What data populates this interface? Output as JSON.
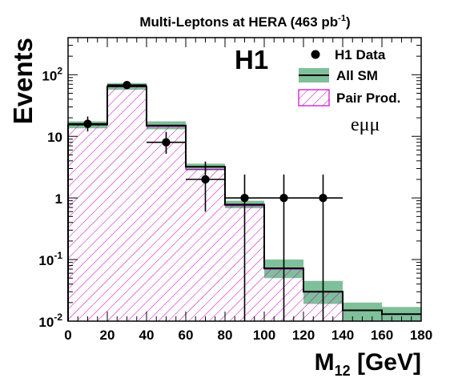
{
  "chart_data": {
    "type": "bar",
    "title": "Multi-Leptons at HERA (463 pb",
    "title_sup": "-1",
    "title_close": ")",
    "experiment": "H1",
    "channel": "eμμ",
    "xlabel": "M",
    "xlabel_sub": "12",
    "xlabel_unit": " [GeV]",
    "ylabel": "Events",
    "xlim": [
      0,
      180
    ],
    "ylim": [
      0.01,
      400
    ],
    "y_scale": "log",
    "grid": false,
    "legend_position": "top-right",
    "x_ticks": [
      0,
      20,
      40,
      60,
      80,
      100,
      120,
      140,
      160,
      180
    ],
    "x_tick_labels": [
      "0",
      "20",
      "40",
      "60",
      "80",
      "100",
      "120",
      "140",
      "160",
      "180"
    ],
    "y_ticks": [
      {
        "value": 0.01,
        "base": "10",
        "exp": "-2"
      },
      {
        "value": 0.1,
        "base": "10",
        "exp": "-1"
      },
      {
        "value": 1,
        "base": "1",
        "exp": ""
      },
      {
        "value": 10,
        "base": "10",
        "exp": ""
      },
      {
        "value": 100,
        "base": "10",
        "exp": "2"
      }
    ],
    "bin_edges": [
      0,
      20,
      40,
      60,
      80,
      100,
      120,
      140,
      160,
      180
    ],
    "series": [
      {
        "name": "H1 Data",
        "style": "points",
        "color": "#000000",
        "points": [
          {
            "x": 10,
            "y": 16,
            "ylow": 12,
            "yhigh": 21
          },
          {
            "x": 30,
            "y": 68,
            "ylow": 60,
            "yhigh": 77
          },
          {
            "x": 50,
            "y": 8,
            "ylow": 5.2,
            "yhigh": 11.8
          },
          {
            "x": 70,
            "y": 2,
            "ylow": 0.6,
            "yhigh": 3.9
          },
          {
            "x": 90,
            "y": 1,
            "ylow": 0.01,
            "yhigh": 2.4
          },
          {
            "x": 110,
            "y": 1,
            "ylow": 0.01,
            "yhigh": 2.4
          },
          {
            "x": 130,
            "y": 1,
            "ylow": 0.01,
            "yhigh": 2.4
          }
        ]
      },
      {
        "name": "All SM",
        "style": "band",
        "color": "#7fbf9a",
        "line_color": "#000000",
        "values": [
          15.5,
          65,
          15,
          3.2,
          0.78,
          0.072,
          0.03,
          0.015,
          0.013
        ],
        "band_low": [
          13.5,
          57,
          13,
          2.8,
          0.68,
          0.05,
          0.019,
          0.01,
          0.01
        ],
        "band_high": [
          17.5,
          73,
          17.5,
          3.6,
          0.9,
          0.1,
          0.045,
          0.02,
          0.017
        ]
      },
      {
        "name": "Pair Prod.",
        "style": "hatched",
        "color": "#cc00cc",
        "values": [
          15.5,
          64,
          14.5,
          2.9,
          0.75,
          0.07,
          0.03,
          0.0,
          0.0
        ]
      }
    ]
  }
}
